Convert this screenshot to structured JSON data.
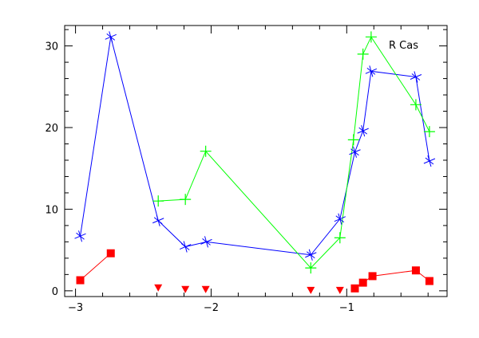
{
  "chart_data": {
    "type": "line",
    "title": "",
    "annotation": "R Cas",
    "xlabel": "",
    "ylabel": "",
    "xlim": [
      -3.08,
      -0.26
    ],
    "ylim": [
      -0.7,
      32.5
    ],
    "xticks": [
      -3,
      -2,
      -1
    ],
    "xtick_labels": [
      "−3",
      "−2",
      "−1"
    ],
    "yticks": [
      0,
      10,
      20,
      30
    ],
    "ytick_labels": [
      "0",
      "10",
      "20",
      "30"
    ],
    "grid": false,
    "series": [
      {
        "color": "#0000ff",
        "marker": "star",
        "connected": true,
        "x": [
          -2.965,
          -2.74,
          -2.39,
          -2.19,
          -2.035,
          -1.265,
          -1.05,
          -0.94,
          -0.88,
          -0.82,
          -0.49,
          -0.39
        ],
        "y": [
          6.7,
          31.1,
          8.6,
          5.4,
          6.0,
          4.4,
          8.8,
          17.0,
          19.6,
          26.9,
          26.2,
          15.9
        ]
      },
      {
        "color": "#00ff00",
        "marker": "plus",
        "connected": true,
        "x": [
          -2.39,
          -2.19,
          -2.04,
          -1.265,
          -1.05,
          -0.95,
          -0.88,
          -0.82,
          -0.49,
          -0.39
        ],
        "y": [
          11.0,
          11.2,
          17.1,
          2.8,
          6.5,
          18.5,
          29.0,
          31.1,
          22.8,
          19.5
        ]
      },
      {
        "color": "#ff0000",
        "marker": "square",
        "connected": true,
        "x": [
          -2.965,
          -2.74
        ],
        "y": [
          1.3,
          4.6
        ]
      },
      {
        "color": "#ff0000",
        "marker": "square",
        "connected": true,
        "x": [
          -0.94,
          -0.88,
          -0.81,
          -0.49,
          -0.39
        ],
        "y": [
          0.3,
          1.0,
          1.8,
          2.5,
          1.2
        ]
      },
      {
        "color": "#ff0000",
        "marker": "triangle-down",
        "connected": false,
        "x": [
          -2.39,
          -2.19,
          -2.04,
          -1.265,
          -1.05
        ],
        "y": [
          0.3,
          0.1,
          0.1,
          0.0,
          0.0
        ]
      }
    ]
  }
}
